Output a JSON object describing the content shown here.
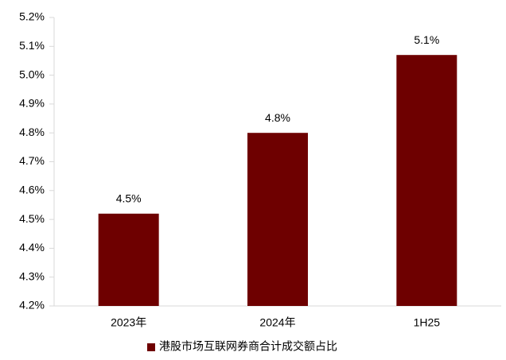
{
  "chart_data": {
    "type": "bar",
    "categories": [
      "2023年",
      "2024年",
      "1H25"
    ],
    "series": [
      {
        "name": "港股市场互联网券商合计成交额占比",
        "color": "#6e0000",
        "values": [
          4.52,
          4.8,
          5.07
        ],
        "value_labels": [
          "4.5%",
          "4.8%",
          "5.1%"
        ]
      }
    ],
    "ylim": [
      4.2,
      5.2
    ],
    "yticks": [
      {
        "value": 4.2,
        "label": "4.2%"
      },
      {
        "value": 4.3,
        "label": "4.3%"
      },
      {
        "value": 4.4,
        "label": "4.4%"
      },
      {
        "value": 4.5,
        "label": "4.5%"
      },
      {
        "value": 4.6,
        "label": "4.6%"
      },
      {
        "value": 4.7,
        "label": "4.7%"
      },
      {
        "value": 4.8,
        "label": "4.8%"
      },
      {
        "value": 4.9,
        "label": "4.9%"
      },
      {
        "value": 5.0,
        "label": "5.0%"
      },
      {
        "value": 5.1,
        "label": "5.1%"
      },
      {
        "value": 5.2,
        "label": "5.2%"
      }
    ],
    "grid": false,
    "legend": "bottom"
  }
}
